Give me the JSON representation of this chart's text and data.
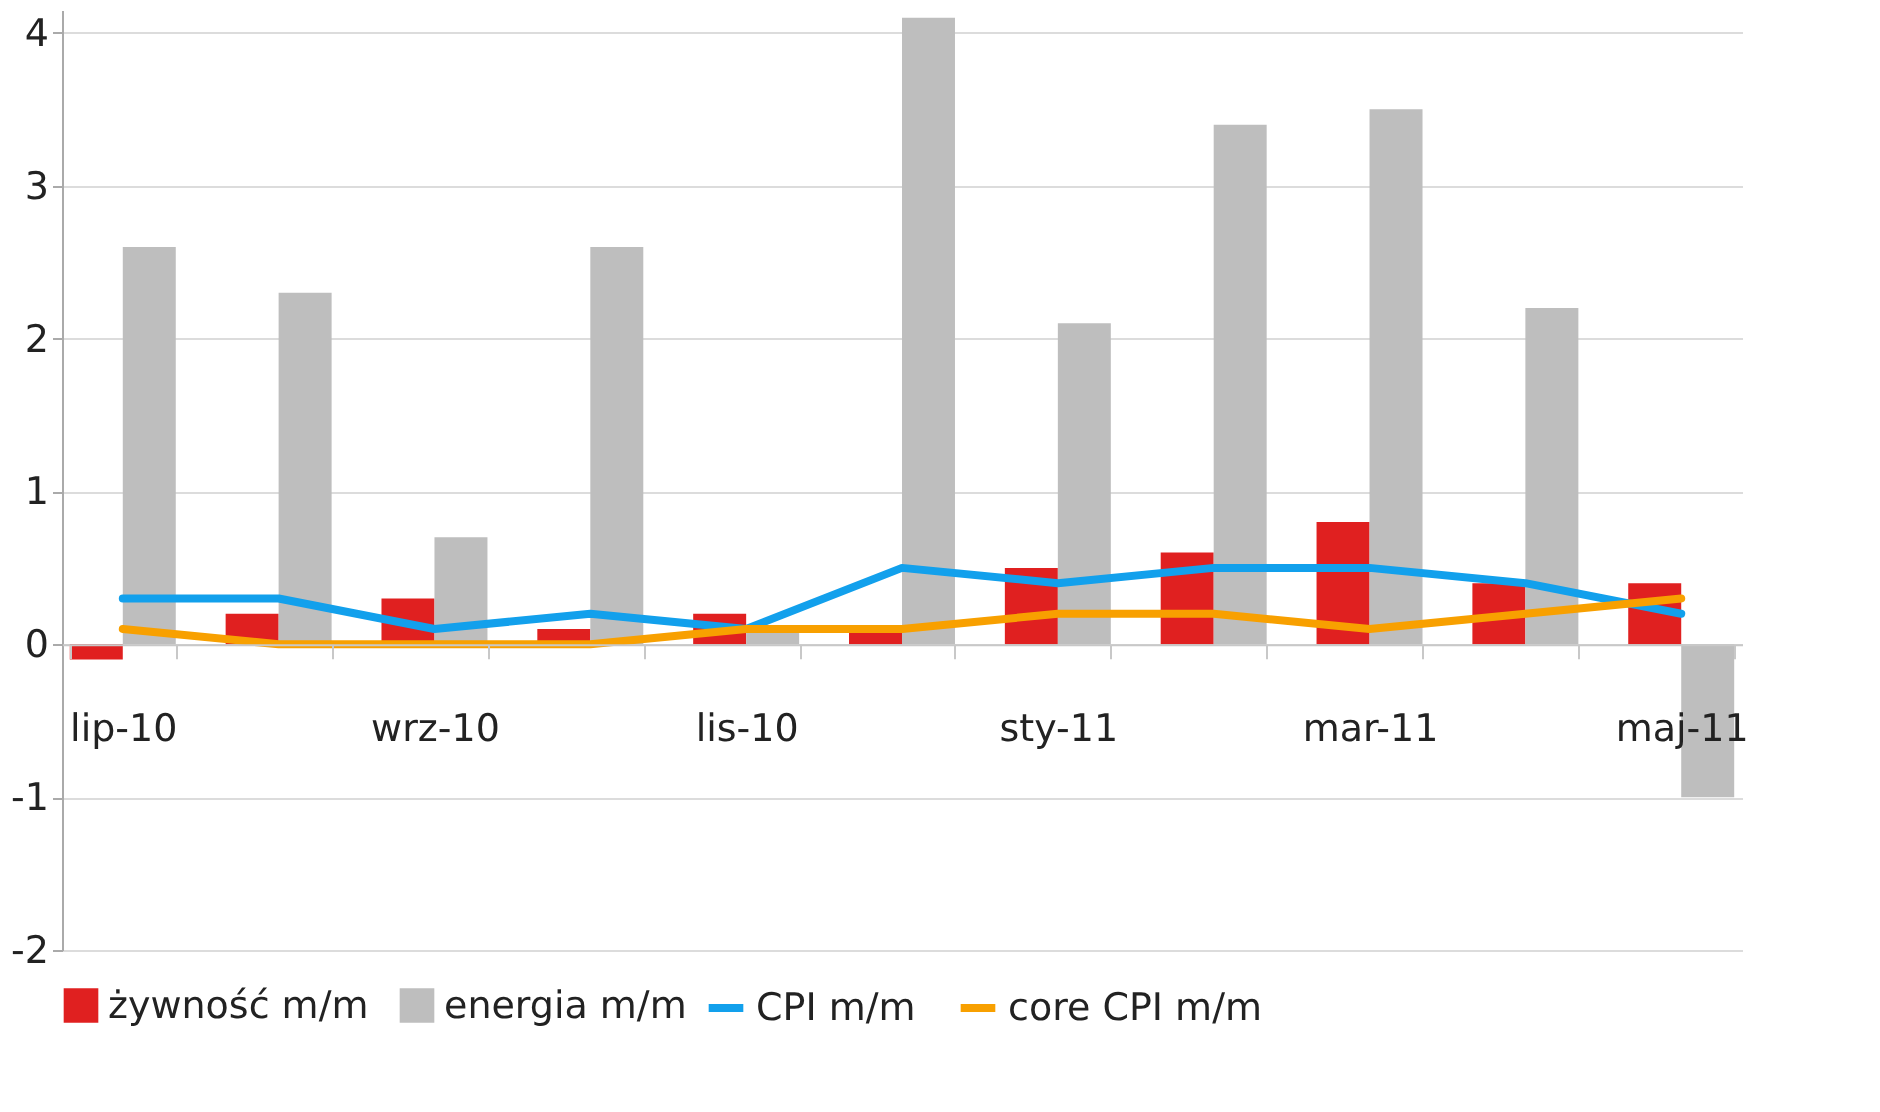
{
  "chart_data": {
    "type": "bar",
    "categories": [
      "lip-10",
      null,
      "wrz-10",
      null,
      "lis-10",
      null,
      "sty-11",
      null,
      "mar-11",
      null,
      "maj-11"
    ],
    "series": [
      {
        "name": "żywność m/m",
        "color": "#e02020",
        "values": [
          -0.1,
          0.2,
          0.3,
          0.1,
          0.2,
          0.1,
          0.5,
          0.6,
          0.8,
          0.4,
          0.4
        ]
      },
      {
        "name": "energia m/m",
        "color": "#bebebe",
        "values": [
          2.6,
          2.3,
          0.7,
          2.6,
          0.1,
          4.1,
          2.1,
          3.4,
          3.5,
          2.2,
          -1.0
        ]
      },
      {
        "name": "CPI m/m",
        "type": "line",
        "color": "#12a0ec",
        "values": [
          0.3,
          0.3,
          0.1,
          0.2,
          0.1,
          0.5,
          0.4,
          0.5,
          0.5,
          0.4,
          0.2
        ]
      },
      {
        "name": "core CPI m/m",
        "type": "line",
        "color": "#f8a000",
        "values": [
          0.1,
          0.0,
          0.0,
          0.0,
          0.1,
          0.1,
          0.2,
          0.2,
          0.1,
          0.2,
          0.3
        ]
      }
    ],
    "ylim": [
      -2,
      4.15
    ],
    "yticks": [
      -2,
      -1,
      0,
      1,
      2,
      3,
      4
    ],
    "grid": "y",
    "legend": "bottom",
    "marker": "none",
    "line_style": "solid"
  }
}
